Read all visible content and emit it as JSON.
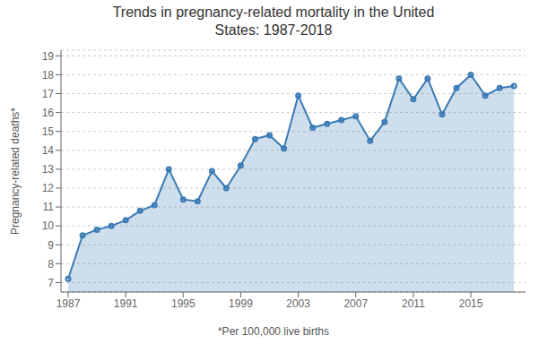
{
  "chart_data": {
    "type": "area",
    "title": "Trends in pregnancy-related mortality in the United\nStates: 1987-2018",
    "ylabel": "Pregnancy-related deaths*",
    "footnote": "*Per 100,000 live births",
    "x": [
      1987,
      1988,
      1989,
      1990,
      1991,
      1992,
      1993,
      1994,
      1995,
      1996,
      1997,
      1998,
      1999,
      2000,
      2001,
      2002,
      2003,
      2004,
      2005,
      2006,
      2007,
      2008,
      2009,
      2010,
      2011,
      2012,
      2013,
      2014,
      2015,
      2016,
      2017,
      2018
    ],
    "values": [
      7.2,
      9.5,
      9.8,
      10.0,
      10.3,
      10.8,
      11.1,
      13.0,
      11.4,
      11.3,
      12.9,
      12.0,
      13.2,
      14.6,
      14.8,
      14.1,
      16.9,
      15.2,
      15.4,
      15.6,
      15.8,
      14.5,
      15.5,
      17.8,
      16.7,
      17.8,
      15.9,
      17.3,
      18.0,
      16.9,
      17.3,
      17.4
    ],
    "color": "#3a7ab5",
    "marker": "circle",
    "grid": true,
    "xlim": [
      1986.5,
      2018.8
    ],
    "xticks": [
      1987,
      1991,
      1995,
      1999,
      2003,
      2007,
      2011,
      2015
    ],
    "ylim": [
      6.5,
      19.3
    ],
    "yticks": [
      7,
      8,
      9,
      10,
      11,
      12,
      13,
      14,
      15,
      16,
      17,
      18,
      19
    ]
  }
}
